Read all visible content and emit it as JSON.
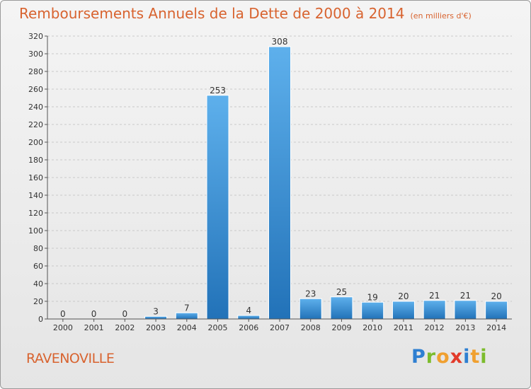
{
  "title": "Remboursements Annuels de la Dette de 2000 à 2014",
  "unit": "(en milliers d'€)",
  "commune": "RAVENOVILLE",
  "logo": {
    "text": "Proxiti",
    "letters": [
      {
        "ch": "P",
        "color": "#2e7fd1"
      },
      {
        "ch": "r",
        "color": "#7cbc2c"
      },
      {
        "ch": "o",
        "color": "#f0a030"
      },
      {
        "ch": "x",
        "color": "#e23a2a"
      },
      {
        "ch": "i",
        "color": "#2e7fd1"
      },
      {
        "ch": "t",
        "color": "#f0a030"
      },
      {
        "ch": "i",
        "color": "#7cbc2c"
      }
    ]
  },
  "colors": {
    "title": "#d8632f",
    "bar_light": "#5eb0ec",
    "bar_dark": "#2272b8",
    "grid": "#c9c9c9",
    "axis": "#555555"
  },
  "chart_data": {
    "type": "bar",
    "title": "Remboursements Annuels de la Dette de 2000 à 2014",
    "categories": [
      "2000",
      "2001",
      "2002",
      "2003",
      "2004",
      "2005",
      "2006",
      "2007",
      "2008",
      "2009",
      "2010",
      "2011",
      "2012",
      "2013",
      "2014"
    ],
    "values": [
      0,
      0,
      0,
      3,
      7,
      253,
      4,
      308,
      23,
      25,
      19,
      20,
      21,
      21,
      20
    ],
    "ylim": [
      0,
      320
    ],
    "yticks": [
      0,
      20,
      40,
      60,
      80,
      100,
      120,
      140,
      160,
      180,
      200,
      220,
      240,
      260,
      280,
      300,
      320
    ],
    "grid": true,
    "legend": "none"
  }
}
